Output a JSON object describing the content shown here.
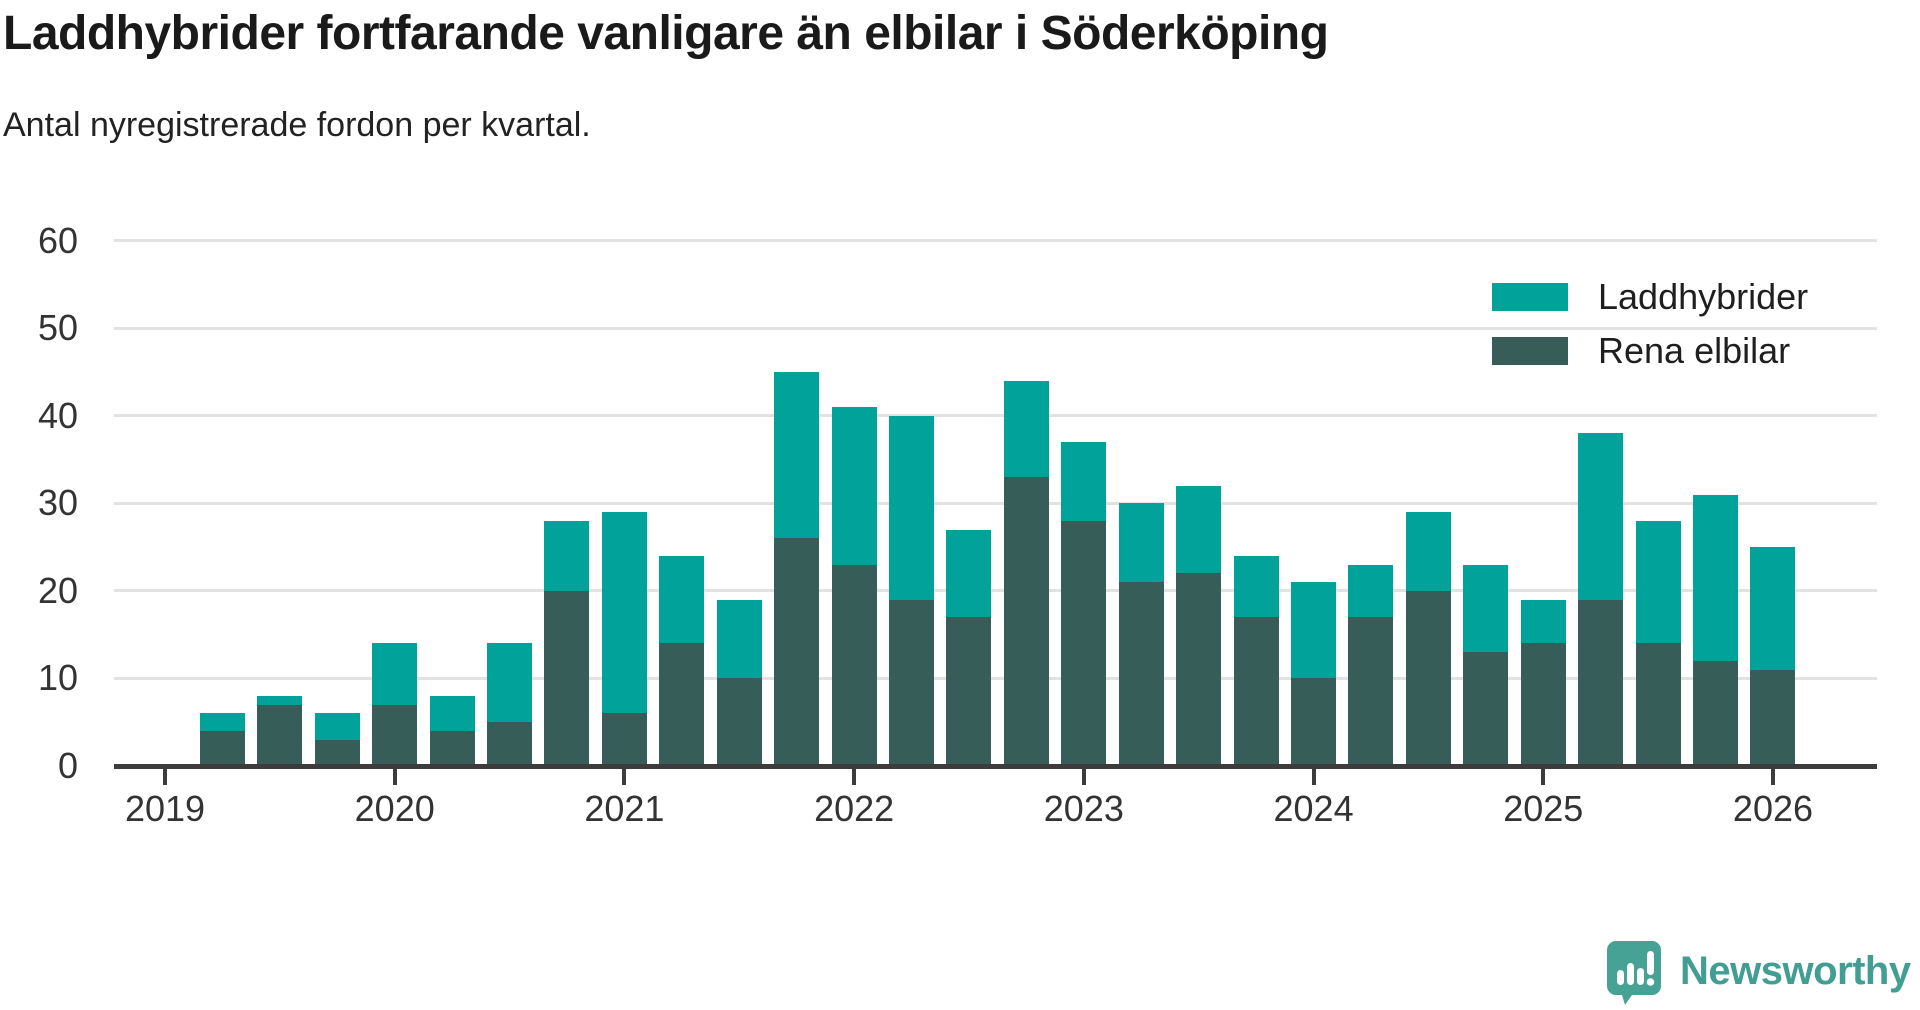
{
  "title": "Laddhybrider fortfarande vanligare än elbilar i Söderköping",
  "subtitle": "Antal nyregistrerade fordon per kvartal.",
  "legend": [
    {
      "label": "Laddhybrider",
      "color": "#00a29a"
    },
    {
      "label": "Rena elbilar",
      "color": "#365d57"
    }
  ],
  "branding": {
    "name": "Newsworthy",
    "color": "#429e92"
  },
  "colors": {
    "laddhybrider": "#00a29a",
    "rena_elbilar": "#365d57",
    "gridline": "#e2e2e2",
    "axis": "#3c3c3c",
    "text": "#333333"
  },
  "chart_data": {
    "type": "bar",
    "stacked": true,
    "title": "Laddhybrider fortfarande vanligare än elbilar i Söderköping",
    "subtitle": "Antal nyregistrerade fordon per kvartal.",
    "categories": [
      "2019 Q2",
      "2019 Q3",
      "2019 Q4",
      "2020 Q1",
      "2020 Q2",
      "2020 Q3",
      "2020 Q4",
      "2021 Q1",
      "2021 Q2",
      "2021 Q3",
      "2021 Q4",
      "2022 Q1",
      "2022 Q2",
      "2022 Q3",
      "2022 Q4",
      "2023 Q1",
      "2023 Q2",
      "2023 Q3",
      "2023 Q4",
      "2024 Q1",
      "2024 Q2",
      "2024 Q3",
      "2024 Q4",
      "2025 Q1",
      "2025 Q2",
      "2025 Q3",
      "2025 Q4",
      "2026 Q1"
    ],
    "series": [
      {
        "name": "Rena elbilar",
        "color": "#365d57",
        "stack_position": "bottom",
        "values": [
          4,
          7,
          3,
          7,
          4,
          5,
          20,
          6,
          14,
          10,
          26,
          23,
          19,
          17,
          33,
          28,
          21,
          22,
          17,
          10,
          17,
          20,
          13,
          14,
          19,
          14,
          12,
          11
        ]
      },
      {
        "name": "Laddhybrider",
        "color": "#00a29a",
        "stack_position": "top",
        "values": [
          2,
          1,
          3,
          7,
          4,
          9,
          8,
          23,
          10,
          9,
          19,
          18,
          21,
          10,
          11,
          9,
          9,
          10,
          7,
          11,
          6,
          9,
          10,
          5,
          19,
          14,
          19,
          14
        ]
      }
    ],
    "totals": [
      6,
      8,
      6,
      14,
      8,
      14,
      28,
      29,
      24,
      19,
      45,
      41,
      40,
      27,
      44,
      37,
      30,
      32,
      24,
      21,
      23,
      29,
      23,
      19,
      38,
      28,
      31,
      25
    ],
    "x_tick_labels": [
      "2019",
      "2020",
      "2021",
      "2022",
      "2023",
      "2024",
      "2025",
      "2026"
    ],
    "yticks": [
      0,
      10,
      20,
      30,
      40,
      50,
      60
    ],
    "ylim": [
      0,
      60
    ],
    "grid": true,
    "legend_position": "top-right"
  }
}
